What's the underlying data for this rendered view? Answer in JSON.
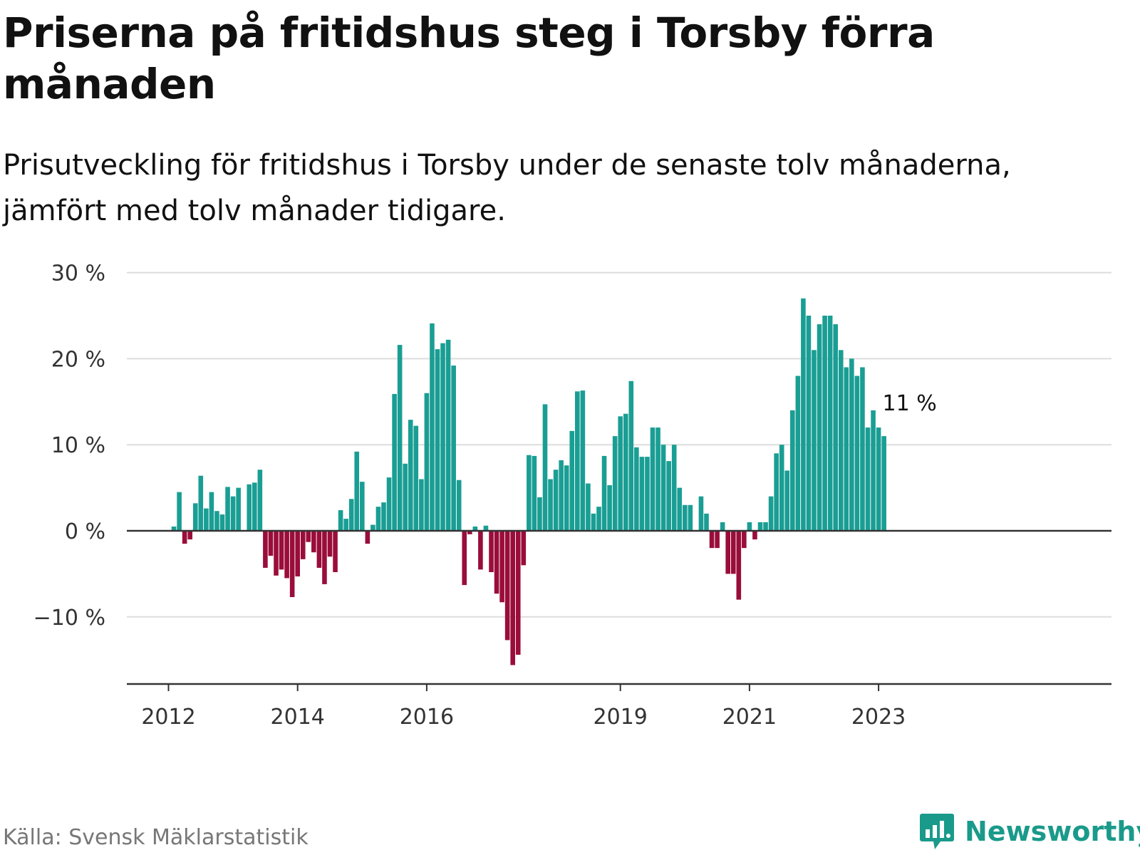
{
  "title": "Priserna på fritidshus steg i Torsby förra månaden",
  "subtitle": "Prisutveckling för fritidshus i Torsby under de senaste tolv månaderna, jämfört med tolv månader tidigare.",
  "source": "Källa: Svensk Mäklarstatistik",
  "brand": "Newsworthy",
  "colors": {
    "positive": "#1a9e94",
    "negative": "#9a0d3b",
    "brand": "#1a9a8a",
    "grid": "#dddddd",
    "zero": "#333333"
  },
  "chart_data": {
    "type": "bar",
    "title": "Priserna på fritidshus steg i Torsby förra månaden",
    "xlabel": "",
    "ylabel": "",
    "ylim": [
      -18,
      30
    ],
    "yticks": [
      30,
      20,
      10,
      0,
      -10
    ],
    "ytick_labels": [
      "30 %",
      "20 %",
      "10 %",
      "0 %",
      "−10 %"
    ],
    "xtick_labels": [
      {
        "label": "2012",
        "index": 0
      },
      {
        "label": "2014",
        "index": 24
      },
      {
        "label": "2016",
        "index": 48
      },
      {
        "label": "2019",
        "index": 84
      },
      {
        "label": "2021",
        "index": 108
      },
      {
        "label": "2023",
        "index": 132
      }
    ],
    "start_period": "2012-01",
    "frequency": "monthly",
    "values": [
      null,
      0.5,
      4.5,
      -1.5,
      -1.0,
      3.2,
      6.4,
      2.6,
      4.5,
      2.3,
      1.9,
      5.1,
      4.0,
      5.0,
      null,
      5.4,
      5.6,
      7.1,
      -4.3,
      -2.9,
      -5.2,
      -4.5,
      -5.5,
      -7.7,
      -5.3,
      -3.3,
      -1.3,
      -2.5,
      -4.3,
      -6.2,
      -3.0,
      -4.8,
      2.4,
      1.4,
      3.7,
      9.2,
      5.7,
      -1.5,
      0.7,
      2.8,
      3.3,
      6.2,
      15.9,
      21.6,
      7.8,
      12.9,
      12.2,
      6.0,
      16.0,
      24.1,
      21.1,
      21.8,
      22.2,
      19.2,
      5.9,
      -6.3,
      -0.4,
      0.5,
      -4.5,
      0.6,
      -4.8,
      -7.3,
      -8.3,
      -12.7,
      -15.6,
      -14.4,
      -4.0,
      8.8,
      8.7,
      3.9,
      14.7,
      6.0,
      7.1,
      8.2,
      7.6,
      11.6,
      16.2,
      16.3,
      5.5,
      2.0,
      2.8,
      8.7,
      5.3,
      11.0,
      13.3,
      13.6,
      17.4,
      9.7,
      8.6,
      8.6,
      12.0,
      12.0,
      10.0,
      8.1,
      10.0,
      5.0,
      3.0,
      3.0,
      null,
      4.0,
      2.0,
      -2.0,
      -2.0,
      1.0,
      -5.0,
      -5.0,
      -8.0,
      -2.0,
      1.0,
      -1.0,
      1.0,
      1.0,
      4.0,
      9.0,
      10.0,
      7.0,
      14.0,
      18.0,
      27.0,
      25.0,
      21.0,
      24.0,
      25.0,
      25.0,
      24.0,
      21.0,
      19.0,
      20.0,
      18.0,
      19.0,
      12.0,
      14.0,
      12.0,
      11.0
    ],
    "last_value_label": "11 %",
    "grid": true,
    "legend": "none"
  }
}
